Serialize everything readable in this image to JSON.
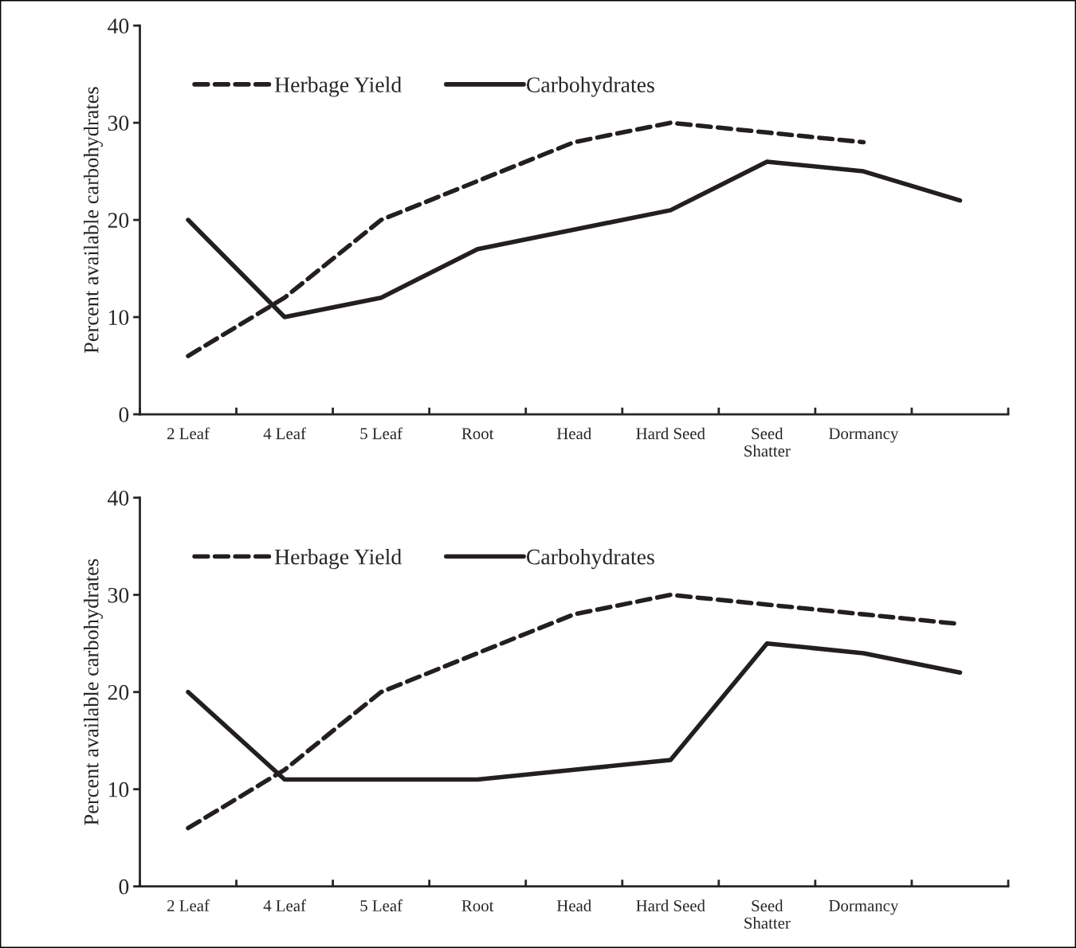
{
  "chart_data": [
    {
      "type": "line",
      "ylabel": "Percent available carbohydrates",
      "categories": [
        "2 Leaf",
        "4 Leaf",
        "5 Leaf",
        "Root",
        "Head",
        "Hard Seed",
        "Seed\nShatter",
        "Dormancy",
        null
      ],
      "ylim": [
        0,
        40
      ],
      "yticks": [
        0,
        10,
        20,
        30,
        40
      ],
      "legend": "top left",
      "grid": false,
      "marker": "none",
      "series": [
        {
          "name": "Herbage Yield",
          "color": "#231f20",
          "line_style": "dashed",
          "values": [
            6,
            12,
            20,
            24,
            28,
            30,
            29,
            28,
            null
          ]
        },
        {
          "name": "Carbohydrates",
          "color": "#231f20",
          "line_style": "solid",
          "values": [
            20,
            10,
            12,
            17,
            19,
            21,
            26,
            25,
            22
          ]
        }
      ]
    },
    {
      "type": "line",
      "ylabel": "Percent available carbohydrates",
      "categories": [
        "2 Leaf",
        "4 Leaf",
        "5 Leaf",
        "Root",
        "Head",
        "Hard Seed",
        "Seed\nShatter",
        "Dormancy",
        null
      ],
      "ylim": [
        0,
        40
      ],
      "yticks": [
        0,
        10,
        20,
        30,
        40
      ],
      "legend": "top left",
      "grid": false,
      "marker": "none",
      "series": [
        {
          "name": "Herbage Yield",
          "color": "#231f20",
          "line_style": "dashed",
          "values": [
            6,
            12,
            20,
            24,
            28,
            30,
            29,
            28,
            27
          ]
        },
        {
          "name": "Carbohydrates",
          "color": "#231f20",
          "line_style": "solid",
          "values": [
            20,
            11,
            11,
            11,
            12,
            13,
            25,
            24,
            22
          ]
        }
      ]
    }
  ]
}
